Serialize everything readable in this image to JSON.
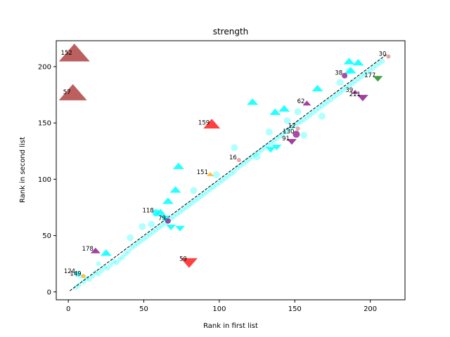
{
  "chart_data": {
    "type": "scatter",
    "title": "strength",
    "xlabel": "Rank in first list",
    "ylabel": "Rank in second list",
    "xlim": [
      -8,
      223
    ],
    "ylim": [
      -7,
      223
    ],
    "xticks": [
      0,
      50,
      100,
      150,
      200
    ],
    "yticks": [
      0,
      50,
      100,
      150,
      200
    ],
    "grid": false,
    "reference_line": {
      "from": [
        1,
        1
      ],
      "to": [
        211,
        211
      ],
      "style": "dashed",
      "color": "#000000"
    },
    "colors": {
      "cyan": "#00ffff",
      "brown": "#a52a2a",
      "red": "#ff0000",
      "purple": "#800080",
      "orange": "#ffa500",
      "green": "#008000",
      "pink": "#e08080"
    },
    "circles": [
      [
        5,
        4
      ],
      [
        7,
        6
      ],
      [
        10,
        9
      ],
      [
        12,
        12
      ],
      [
        14,
        11
      ],
      [
        16,
        14
      ],
      [
        18,
        17
      ],
      [
        20,
        16
      ],
      [
        22,
        19
      ],
      [
        24,
        22
      ],
      [
        26,
        21
      ],
      [
        28,
        24
      ],
      [
        30,
        27
      ],
      [
        32,
        26
      ],
      [
        34,
        29
      ],
      [
        36,
        31
      ],
      [
        38,
        34
      ],
      [
        40,
        36
      ],
      [
        42,
        39
      ],
      [
        44,
        41
      ],
      [
        46,
        43
      ],
      [
        48,
        45
      ],
      [
        50,
        47
      ],
      [
        52,
        49
      ],
      [
        54,
        51
      ],
      [
        56,
        53
      ],
      [
        58,
        55
      ],
      [
        60,
        57
      ],
      [
        62,
        59
      ],
      [
        64,
        61
      ],
      [
        66,
        63
      ],
      [
        68,
        65
      ],
      [
        70,
        67
      ],
      [
        72,
        69
      ],
      [
        74,
        71
      ],
      [
        76,
        73
      ],
      [
        78,
        75
      ],
      [
        80,
        77
      ],
      [
        82,
        79
      ],
      [
        84,
        81
      ],
      [
        86,
        83
      ],
      [
        88,
        85
      ],
      [
        90,
        87
      ],
      [
        92,
        89
      ],
      [
        94,
        91
      ],
      [
        96,
        93
      ],
      [
        98,
        95
      ],
      [
        100,
        97
      ],
      [
        102,
        99
      ],
      [
        104,
        101
      ],
      [
        106,
        103
      ],
      [
        108,
        105
      ],
      [
        110,
        107
      ],
      [
        112,
        110
      ],
      [
        114,
        112
      ],
      [
        116,
        114
      ],
      [
        118,
        116
      ],
      [
        120,
        118
      ],
      [
        122,
        120
      ],
      [
        124,
        122
      ],
      [
        126,
        124
      ],
      [
        128,
        126
      ],
      [
        130,
        128
      ],
      [
        132,
        130
      ],
      [
        134,
        132
      ],
      [
        136,
        134
      ],
      [
        138,
        136
      ],
      [
        140,
        138
      ],
      [
        142,
        140
      ],
      [
        144,
        142
      ],
      [
        146,
        144
      ],
      [
        148,
        146
      ],
      [
        150,
        148
      ],
      [
        152,
        150
      ],
      [
        154,
        151
      ],
      [
        156,
        153
      ],
      [
        158,
        155
      ],
      [
        160,
        157
      ],
      [
        162,
        159
      ],
      [
        164,
        161
      ],
      [
        166,
        163
      ],
      [
        168,
        165
      ],
      [
        170,
        167
      ],
      [
        172,
        169
      ],
      [
        174,
        171
      ],
      [
        176,
        173
      ],
      [
        178,
        175
      ],
      [
        180,
        177
      ],
      [
        182,
        179
      ],
      [
        184,
        181
      ],
      [
        186,
        183
      ],
      [
        188,
        185
      ],
      [
        190,
        187
      ],
      [
        192,
        189
      ],
      [
        194,
        191
      ],
      [
        196,
        193
      ],
      [
        198,
        195
      ],
      [
        200,
        197
      ],
      [
        202,
        199
      ],
      [
        204,
        201
      ],
      [
        206,
        203
      ],
      [
        208,
        205
      ],
      [
        8,
        14
      ],
      [
        20,
        25
      ],
      [
        41,
        48
      ],
      [
        49,
        58
      ],
      [
        55,
        60
      ],
      [
        58,
        71
      ],
      [
        83,
        90
      ],
      [
        98,
        104
      ],
      [
        110,
        128
      ],
      [
        133,
        142
      ],
      [
        145,
        152
      ],
      [
        152,
        160
      ],
      [
        180,
        186
      ],
      [
        186,
        196
      ],
      [
        156,
        139
      ],
      [
        125,
        120
      ],
      [
        168,
        156
      ]
    ],
    "big_cyan_triangles_up": [
      [
        122,
        168
      ],
      [
        73,
        111
      ],
      [
        137,
        159
      ],
      [
        143,
        162
      ],
      [
        186,
        204
      ],
      [
        192,
        203
      ],
      [
        165,
        180
      ],
      [
        66,
        80
      ],
      [
        71,
        90
      ],
      [
        25,
        34
      ],
      [
        61,
        70
      ],
      [
        187,
        196
      ]
    ],
    "big_cyan_triangles_down": [
      [
        74,
        57
      ],
      [
        68,
        58
      ],
      [
        134,
        127
      ],
      [
        138,
        129
      ],
      [
        64,
        66
      ]
    ],
    "labeled_points": [
      {
        "label": "152",
        "x": 4,
        "y": 210,
        "shape": "tri-up",
        "color": "brown",
        "size": 22
      },
      {
        "label": "57",
        "x": 3,
        "y": 175,
        "shape": "tri-up",
        "color": "brown",
        "size": 20
      },
      {
        "label": "159",
        "x": 95,
        "y": 148,
        "shape": "tri-up",
        "color": "red",
        "size": 12
      },
      {
        "label": "59",
        "x": 80,
        "y": 27,
        "shape": "tri-down",
        "color": "red",
        "size": 12
      },
      {
        "label": "151",
        "x": 94,
        "y": 104,
        "shape": "tri-up",
        "color": "orange",
        "size": 5
      },
      {
        "label": "16",
        "x": 113,
        "y": 117,
        "shape": "circle",
        "color": "pink",
        "size": 3
      },
      {
        "label": "178",
        "x": 18,
        "y": 36,
        "shape": "tri-up",
        "color": "purple",
        "size": 7
      },
      {
        "label": "124",
        "x": 6,
        "y": 16,
        "shape": "circle",
        "color": "cyan",
        "size": 4
      },
      {
        "label": "149",
        "x": 10,
        "y": 14,
        "shape": "circle",
        "color": "orange",
        "size": 3
      },
      {
        "label": "118",
        "x": 58,
        "y": 70,
        "shape": "circle",
        "color": "cyan",
        "size": 5
      },
      {
        "label": "79",
        "x": 66,
        "y": 63,
        "shape": "circle",
        "color": "purple",
        "size": 4
      },
      {
        "label": "62",
        "x": 158,
        "y": 167,
        "shape": "tri-up",
        "color": "purple",
        "size": 6
      },
      {
        "label": "12",
        "x": 152,
        "y": 145,
        "shape": "circle",
        "color": "pink",
        "size": 3
      },
      {
        "label": "130",
        "x": 151,
        "y": 140,
        "shape": "circle",
        "color": "purple",
        "size": 5
      },
      {
        "label": "91",
        "x": 148,
        "y": 134,
        "shape": "tri-down",
        "color": "purple",
        "size": 7
      },
      {
        "label": "30",
        "x": 212,
        "y": 209,
        "shape": "circle",
        "color": "pink",
        "size": 3
      },
      {
        "label": "38",
        "x": 183,
        "y": 192,
        "shape": "circle",
        "color": "purple",
        "size": 4
      },
      {
        "label": "177",
        "x": 205,
        "y": 190,
        "shape": "tri-down",
        "color": "green",
        "size": 7
      },
      {
        "label": "39",
        "x": 190,
        "y": 177,
        "shape": "tri-up",
        "color": "purple",
        "size": 5
      },
      {
        "label": "211",
        "x": 195,
        "y": 173,
        "shape": "tri-down",
        "color": "purple",
        "size": 8
      }
    ]
  }
}
